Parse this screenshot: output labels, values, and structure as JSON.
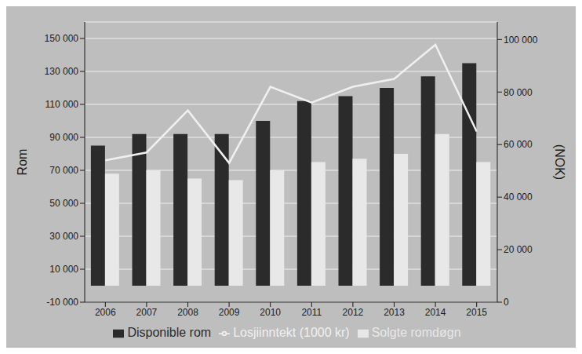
{
  "chart_data": {
    "type": "bar",
    "categories": [
      "2006",
      "2007",
      "2008",
      "2009",
      "2010",
      "2011",
      "2012",
      "2013",
      "2014",
      "2015"
    ],
    "series": [
      {
        "name": "Disponible rom",
        "type": "bar",
        "color": "#2b2b2b",
        "values": [
          85000,
          92000,
          92000,
          92000,
          100000,
          112000,
          115000,
          120000,
          127000,
          135000
        ]
      },
      {
        "name": "Solgte romdøgn",
        "type": "bar",
        "color": "#e8e8e8",
        "values": [
          68000,
          70000,
          65000,
          64000,
          70000,
          75000,
          77000,
          80000,
          92000,
          75000
        ]
      },
      {
        "name": "Losjiinntekt (1000 kr)",
        "type": "line",
        "axis": "y2",
        "color": "#f0f0f0",
        "values": [
          54000,
          57000,
          73000,
          53000,
          82000,
          76000,
          82000,
          85000,
          98000,
          65000
        ]
      }
    ],
    "ylabel": "Rom",
    "y2label": "(NOK)",
    "ylim": [
      -10000,
      160000
    ],
    "yticks": [
      {
        "value": -10000,
        "label": "-10 000"
      },
      {
        "value": 10000,
        "label": "10 000"
      },
      {
        "value": 30000,
        "label": "30 000"
      },
      {
        "value": 50000,
        "label": "50 000"
      },
      {
        "value": 70000,
        "label": "70 000"
      },
      {
        "value": 90000,
        "label": "90 000"
      },
      {
        "value": 110000,
        "label": "110 000"
      },
      {
        "value": 130000,
        "label": "130 000"
      },
      {
        "value": 150000,
        "label": "150 000"
      }
    ],
    "y2lim": [
      0,
      106667
    ],
    "y2ticks": [
      0,
      {
        "value": 20000,
        "label": "20 000"
      },
      {
        "value": 40000,
        "label": "40 000"
      },
      {
        "value": 60000,
        "label": "60 000"
      },
      {
        "value": 80000,
        "label": "80 000"
      },
      {
        "value": 100000,
        "label": "100 000"
      }
    ],
    "grid": true,
    "legend": "bottom"
  }
}
